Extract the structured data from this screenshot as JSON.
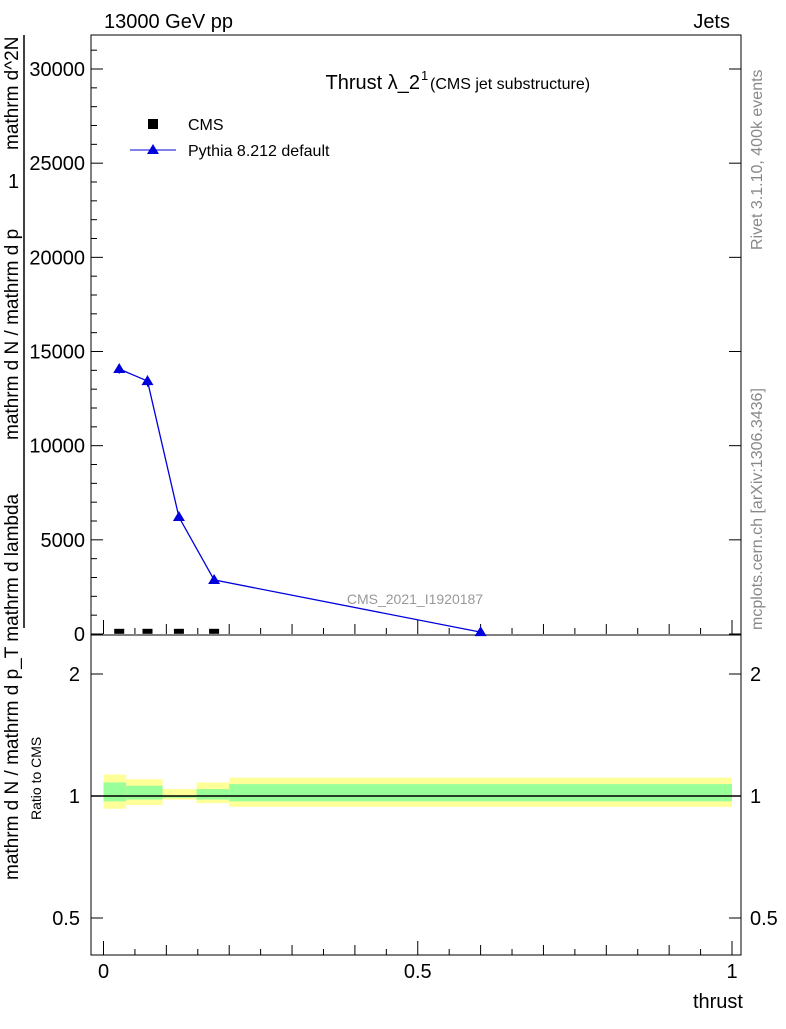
{
  "header": {
    "left": "13000 GeV pp",
    "right": "Jets"
  },
  "side": {
    "rivet": "Rivet 3.1.10,  400k events",
    "mcplots": "mcplots.cern.ch [arXiv:1306.3436]"
  },
  "chart_data": [
    {
      "type": "line",
      "title": "Thrust λ_2",
      "title_sup": "1",
      "subtitle": "(CMS jet substructure)",
      "watermark": "CMS_2021_I1920187",
      "ylabel_top": "1",
      "ylabel": "mathrm d N / mathrm d p_T mathrm d lambda",
      "ylabel_frac_top": "mathrm d^2N",
      "ylabel_frac_bottom": "mathrm d N / mathrm d p_T mathrm d lambda",
      "ylabel_display": "mathrm d N / mathrm d p",
      "ylabel_display2": "mathrm d^2N / mathrm d p_T mathrm d lambda",
      "xlim": [
        0,
        1
      ],
      "ylim": [
        0,
        31500
      ],
      "yticks": [
        0,
        5000,
        10000,
        15000,
        20000,
        25000,
        30000
      ],
      "ytick_labels": [
        "0",
        "5000",
        "10000",
        "15000",
        "20000",
        "25000",
        "30000"
      ],
      "legend": {
        "placement": "top-left",
        "entries": [
          "CMS",
          "Pythia 8.212 default"
        ]
      },
      "series": [
        {
          "name": "CMS",
          "color": "#000000",
          "marker": "square",
          "x": [
            0.025,
            0.07,
            0.12,
            0.176
          ],
          "y": [
            10,
            10,
            10,
            10
          ]
        },
        {
          "name": "Pythia 8.212 default",
          "color": "#0000dd",
          "marker": "triangle",
          "x": [
            0.025,
            0.07,
            0.12,
            0.176,
            0.6
          ],
          "y": [
            14070,
            13430,
            6210,
            2870,
            100
          ],
          "yerr": [
            250,
            300,
            100,
            60,
            20
          ]
        }
      ]
    },
    {
      "type": "area",
      "ylabel": "Ratio to CMS",
      "xlabel": "thrust",
      "yscale": "log",
      "ylim": [
        0.405,
        2.5
      ],
      "xlim": [
        0,
        1
      ],
      "yticks": [
        0.5,
        1,
        2
      ],
      "ytick_labels": [
        "0.5",
        "1",
        "2"
      ],
      "xticks": [
        0,
        0.5,
        1
      ],
      "xtick_labels": [
        "0",
        "0.5",
        "1"
      ],
      "bin_edges": [
        0,
        0.036,
        0.094,
        0.148,
        0.2,
        1.0
      ],
      "band_yellow": [
        [
          0.93,
          1.13
        ],
        [
          0.95,
          1.1
        ],
        [
          0.98,
          1.04
        ],
        [
          0.96,
          1.08
        ],
        [
          0.94,
          1.11
        ]
      ],
      "band_green": [
        [
          0.97,
          1.08
        ],
        [
          0.98,
          1.06
        ],
        [
          0.99,
          1.0
        ],
        [
          0.98,
          1.04
        ],
        [
          0.97,
          1.07
        ]
      ],
      "colors": {
        "yellow": "#ffff99",
        "green": "#99ff99"
      }
    }
  ]
}
